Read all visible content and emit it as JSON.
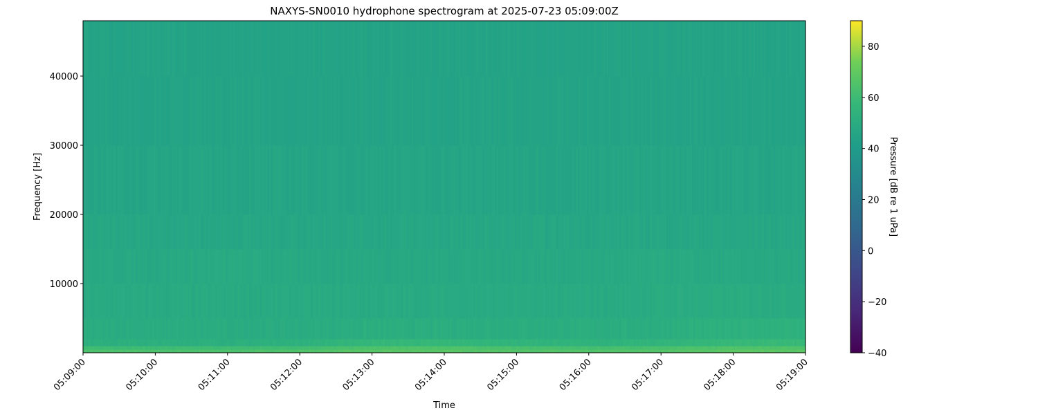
{
  "chart_data": {
    "type": "heatmap",
    "title": "NAXYS-SN0010 hydrophone spectrogram at 2025-07-23 05:09:00Z",
    "xlabel": "Time",
    "ylabel": "Frequency [Hz]",
    "colorbar_label": "Pressure [dB re 1 uPa]",
    "colormap": "viridis",
    "clim": [
      -40,
      90
    ],
    "colorbar_ticks": [
      -40,
      -20,
      0,
      20,
      40,
      60,
      80
    ],
    "colorbar_tick_labels": [
      "−40",
      "−20",
      "0",
      "20",
      "40",
      "60",
      "80"
    ],
    "ylim": [
      0,
      48000
    ],
    "yticks": [
      10000,
      20000,
      30000,
      40000
    ],
    "ytick_labels": [
      "10000",
      "20000",
      "30000",
      "40000"
    ],
    "xticks": [
      "05:09:00",
      "05:10:00",
      "05:11:00",
      "05:12:00",
      "05:13:00",
      "05:14:00",
      "05:15:00",
      "05:16:00",
      "05:17:00",
      "05:18:00",
      "05:19:00"
    ],
    "time_bins": [
      "05:09",
      "05:10",
      "05:11",
      "05:12",
      "05:13",
      "05:14",
      "05:15",
      "05:16",
      "05:17",
      "05:18"
    ],
    "frequency_bands_hz": [
      [
        0,
        500
      ],
      [
        500,
        1000
      ],
      [
        1000,
        2000
      ],
      [
        2000,
        5000
      ],
      [
        5000,
        10000
      ],
      [
        10000,
        15000
      ],
      [
        15000,
        20000
      ],
      [
        20000,
        30000
      ],
      [
        30000,
        40000
      ],
      [
        40000,
        48000
      ]
    ],
    "values_db": [
      [
        64,
        64,
        64,
        65,
        67,
        67,
        66,
        65,
        66,
        68
      ],
      [
        60,
        60,
        60,
        61,
        64,
        65,
        63,
        62,
        63,
        65
      ],
      [
        52,
        52,
        52,
        53,
        57,
        57,
        55,
        54,
        55,
        58
      ],
      [
        50,
        50,
        50,
        50,
        51,
        51,
        51,
        51,
        51,
        53
      ],
      [
        49,
        49,
        49,
        49,
        49,
        49,
        49,
        49,
        50,
        50
      ],
      [
        48,
        48,
        49,
        48,
        48,
        48,
        48,
        48,
        49,
        48
      ],
      [
        47,
        47,
        47,
        47,
        47,
        47,
        47,
        47,
        47,
        47
      ],
      [
        46,
        46,
        46,
        46,
        46,
        46,
        46,
        46,
        46,
        46
      ],
      [
        45,
        45,
        45,
        45,
        45,
        45,
        45,
        45,
        45,
        45
      ],
      [
        45,
        45,
        45,
        45,
        45,
        45,
        45,
        45,
        45,
        45
      ]
    ]
  }
}
